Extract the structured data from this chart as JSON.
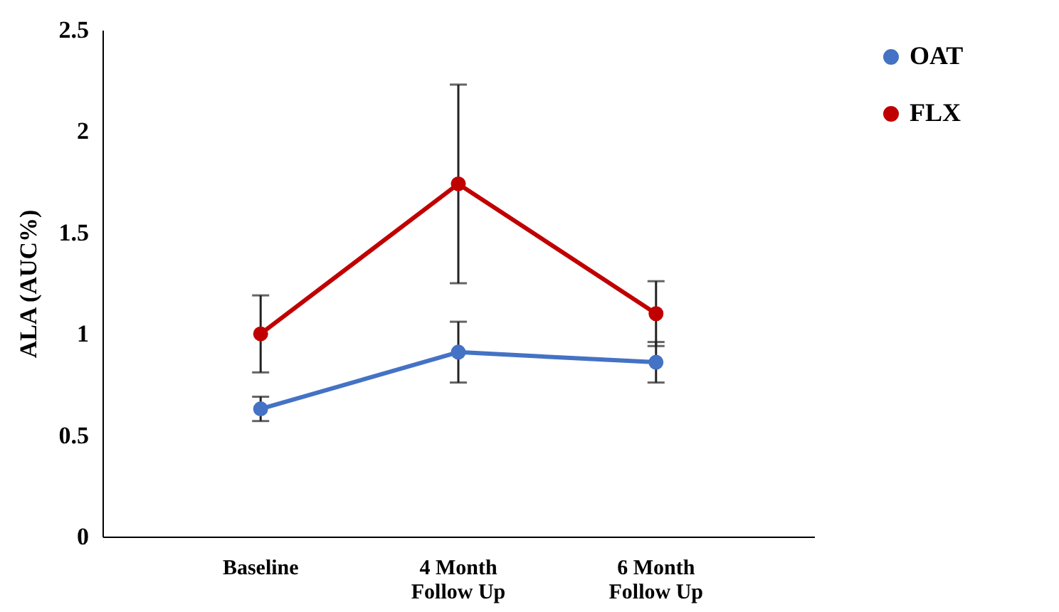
{
  "chart_data": {
    "type": "line",
    "ylabel": "ALA (AUC%)",
    "categories": [
      "Baseline",
      "4 Month\nFollow Up",
      "6 Month\nFollow Up"
    ],
    "series": [
      {
        "name": "OAT",
        "color": "#4472c4",
        "values": [
          0.63,
          0.91,
          0.86
        ],
        "errors": [
          0.06,
          0.15,
          0.1
        ]
      },
      {
        "name": "FLX",
        "color": "#c00000",
        "values": [
          1.0,
          1.74,
          1.1
        ],
        "errors": [
          0.19,
          0.49,
          0.16
        ]
      }
    ],
    "ylim": [
      0,
      2.5
    ],
    "yticks": [
      0,
      0.5,
      1,
      1.5,
      2,
      2.5
    ],
    "grid": false,
    "legend": "top right",
    "marker": "circle",
    "line_style": "solid"
  }
}
